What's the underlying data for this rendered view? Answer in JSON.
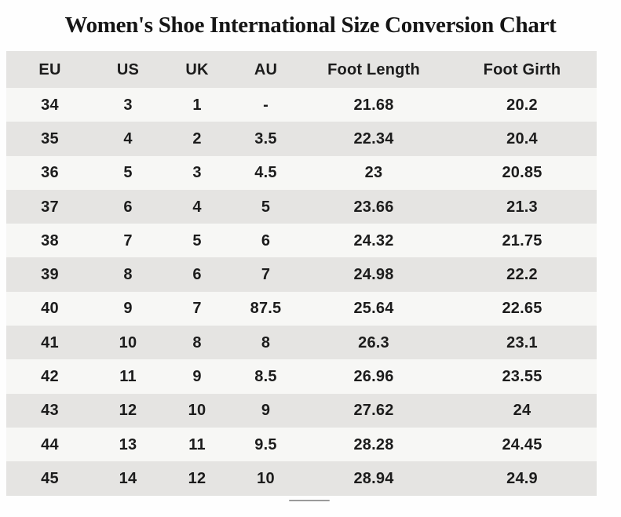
{
  "title": "Women's Shoe International Size Conversion Chart",
  "chart_data": {
    "type": "table",
    "title": "Women's Shoe International Size Conversion Chart",
    "columns": [
      "EU",
      "US",
      "UK",
      "AU",
      "Foot Length",
      "Foot Girth"
    ],
    "rows": [
      [
        "34",
        "3",
        "1",
        "-",
        "21.68",
        "20.2"
      ],
      [
        "35",
        "4",
        "2",
        "3.5",
        "22.34",
        "20.4"
      ],
      [
        "36",
        "5",
        "3",
        "4.5",
        "23",
        "20.85"
      ],
      [
        "37",
        "6",
        "4",
        "5",
        "23.66",
        "21.3"
      ],
      [
        "38",
        "7",
        "5",
        "6",
        "24.32",
        "21.75"
      ],
      [
        "39",
        "8",
        "6",
        "7",
        "24.98",
        "22.2"
      ],
      [
        "40",
        "9",
        "7",
        "87.5",
        "25.64",
        "22.65"
      ],
      [
        "41",
        "10",
        "8",
        "8",
        "26.3",
        "23.1"
      ],
      [
        "42",
        "11",
        "9",
        "8.5",
        "26.96",
        "23.55"
      ],
      [
        "43",
        "12",
        "10",
        "9",
        "27.62",
        "24"
      ],
      [
        "44",
        "13",
        "11",
        "9.5",
        "28.28",
        "24.45"
      ],
      [
        "45",
        "14",
        "12",
        "10",
        "28.94",
        "24.9"
      ]
    ],
    "layout": {
      "striped": true,
      "header_background": "#e5e4e2",
      "stripe_gray": "#e5e4e2",
      "stripe_light": "#f7f7f5"
    }
  },
  "colors": {
    "page_background": "#fefefe",
    "text": "#1c1c1c",
    "row_gray": "#e5e4e2",
    "row_light": "#f7f7f5",
    "divider": "#9a9a9a"
  }
}
